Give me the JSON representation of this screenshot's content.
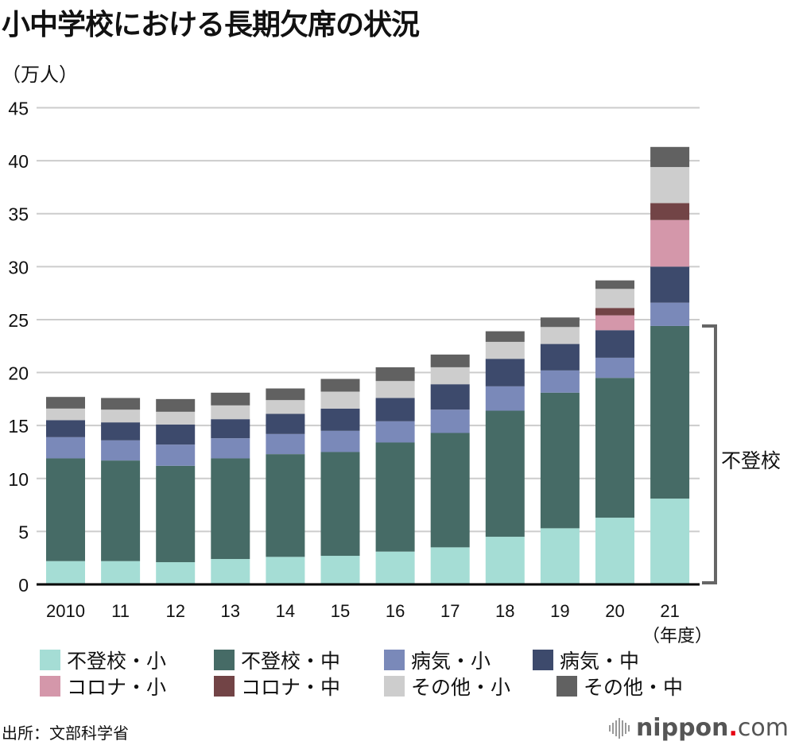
{
  "title": "小中学校における長期欠席の状況",
  "unit_label": "（万人）",
  "source": "出所：文部科学省",
  "logo": {
    "main": "nippon",
    "dot": ".",
    "suffix": "com",
    "icon": "sound-bars-icon"
  },
  "bracket_label": "不登校",
  "year_suffix": "（年度）",
  "colors": {
    "futoko_sho": "#a5ddd5",
    "futoko_chu": "#466b66",
    "byoki_sho": "#7a89b9",
    "byoki_chu": "#3d4a6c",
    "corona_sho": "#d497aa",
    "corona_chu": "#724446",
    "sonota_sho": "#cdcdcd",
    "sonota_chu": "#616161"
  },
  "legend": [
    {
      "label": "不登校・小",
      "color": "#a5ddd5"
    },
    {
      "label": "不登校・中",
      "color": "#466b66"
    },
    {
      "label": "病気・小",
      "color": "#7a89b9"
    },
    {
      "label": "病気・中",
      "color": "#3d4a6c"
    },
    {
      "label": "コロナ・小",
      "color": "#d497aa"
    },
    {
      "label": "コロナ・中",
      "color": "#724446"
    },
    {
      "label": "その他・小",
      "color": "#cdcdcd"
    },
    {
      "label": "その他・中",
      "color": "#616161"
    }
  ],
  "chart_data": {
    "type": "bar",
    "stacked": true,
    "title": "小中学校における長期欠席の状況",
    "xlabel": "（年度）",
    "ylabel": "（万人）",
    "ylim": [
      0,
      45
    ],
    "yticks": [
      0,
      5,
      10,
      15,
      20,
      25,
      30,
      35,
      40,
      45
    ],
    "grid": true,
    "legend_position": "bottom",
    "categories": [
      "2010",
      "11",
      "12",
      "13",
      "14",
      "15",
      "16",
      "17",
      "18",
      "19",
      "20",
      "21"
    ],
    "series": [
      {
        "name": "不登校・小",
        "color": "#a5ddd5",
        "values": [
          2.2,
          2.2,
          2.1,
          2.4,
          2.6,
          2.7,
          3.1,
          3.5,
          4.5,
          5.3,
          6.3,
          8.1
        ]
      },
      {
        "name": "不登校・中",
        "color": "#466b66",
        "values": [
          9.7,
          9.5,
          9.1,
          9.5,
          9.7,
          9.8,
          10.3,
          10.8,
          11.9,
          12.8,
          13.2,
          16.3
        ]
      },
      {
        "name": "病気・小",
        "color": "#7a89b9",
        "values": [
          2.0,
          1.9,
          2.0,
          1.9,
          1.9,
          2.0,
          2.0,
          2.2,
          2.3,
          2.1,
          1.9,
          2.2
        ]
      },
      {
        "name": "病気・中",
        "color": "#3d4a6c",
        "values": [
          1.6,
          1.7,
          1.9,
          1.8,
          1.9,
          2.1,
          2.2,
          2.4,
          2.6,
          2.5,
          2.6,
          3.4
        ]
      },
      {
        "name": "コロナ・小",
        "color": "#d497aa",
        "values": [
          0,
          0,
          0,
          0,
          0,
          0,
          0,
          0,
          0,
          0,
          1.4,
          4.4
        ]
      },
      {
        "name": "コロナ・中",
        "color": "#724446",
        "values": [
          0,
          0,
          0,
          0,
          0,
          0,
          0,
          0,
          0,
          0,
          0.7,
          1.6
        ]
      },
      {
        "name": "その他・小",
        "color": "#cdcdcd",
        "values": [
          1.1,
          1.2,
          1.2,
          1.3,
          1.3,
          1.6,
          1.6,
          1.6,
          1.6,
          1.6,
          1.8,
          3.4
        ]
      },
      {
        "name": "その他・中",
        "color": "#616161",
        "values": [
          1.1,
          1.1,
          1.2,
          1.2,
          1.1,
          1.2,
          1.3,
          1.2,
          1.0,
          0.9,
          0.8,
          1.9
        ]
      }
    ],
    "annotations": [
      {
        "text": "不登校",
        "type": "bracket",
        "spans_series": [
          "不登校・小",
          "不登校・中"
        ],
        "category": "21"
      }
    ]
  }
}
